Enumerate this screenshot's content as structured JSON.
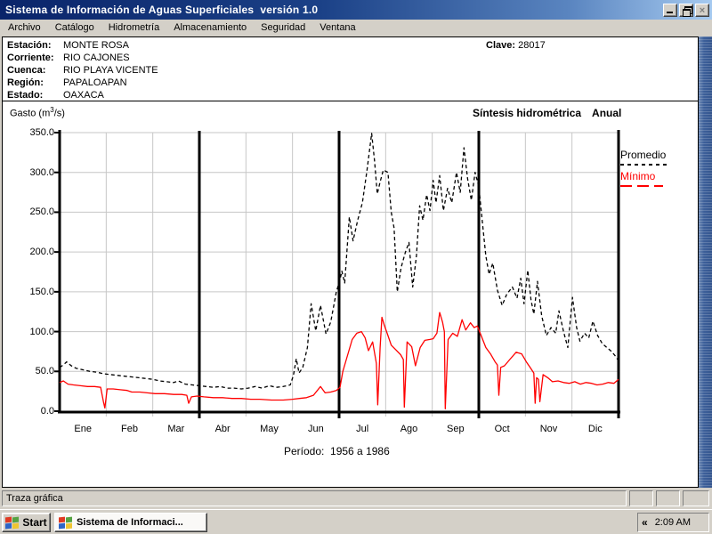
{
  "window": {
    "title": "Sistema de Información de Aguas Superficiales  versión 1.0"
  },
  "menu": {
    "items": [
      "Archivo",
      "Catálogo",
      "Hidrometría",
      "Almacenamiento",
      "Seguridad",
      "Ventana"
    ]
  },
  "station": {
    "rows": [
      {
        "label": "Estación:",
        "value": "MONTE ROSA"
      },
      {
        "label": "Corriente:",
        "value": "RIO CAJONES"
      },
      {
        "label": "Cuenca:",
        "value": "RIO PLAYA VICENTE"
      },
      {
        "label": "Región:",
        "value": "PAPALOAPAN"
      },
      {
        "label": "Estado:",
        "value": "OAXACA"
      }
    ],
    "clave_label": "Clave:",
    "clave_value": "28017"
  },
  "chart_data": {
    "type": "line",
    "title": "Síntesis hidrométrica",
    "title_suffix": "Anual",
    "ylabel_prefix": "Gasto (m",
    "ylabel_sup": "3",
    "ylabel_suffix": "/s)",
    "annotation": "Período:  1956 a 1986",
    "ylim": [
      0,
      350
    ],
    "yticks": [
      "350.0",
      "300.0",
      "250.0",
      "200.0",
      "150.0",
      "100.0",
      "50.0",
      "0.0"
    ],
    "ytick_values": [
      350,
      300,
      250,
      200,
      150,
      100,
      50,
      0
    ],
    "categories": [
      "Ene",
      "Feb",
      "Mar",
      "Abr",
      "May",
      "Jun",
      "Jul",
      "Ago",
      "Sep",
      "Oct",
      "Nov",
      "Dic"
    ],
    "grid": true,
    "grid_color": "#c6c6c6",
    "legend_position": "right",
    "legend": [
      {
        "label": "Promedio",
        "color": "#000000",
        "style": "dashed"
      },
      {
        "label": "Mínimo",
        "color": "#ff0000",
        "style": "solid"
      }
    ],
    "series": [
      {
        "name": "Promedio",
        "color": "#000000",
        "dashed": true,
        "points": [
          [
            0.0,
            55
          ],
          [
            0.08,
            58
          ],
          [
            0.15,
            62
          ],
          [
            0.25,
            57
          ],
          [
            0.35,
            54
          ],
          [
            0.5,
            52
          ],
          [
            0.65,
            50
          ],
          [
            0.8,
            49
          ],
          [
            0.95,
            47
          ],
          [
            1.1,
            46
          ],
          [
            1.25,
            45
          ],
          [
            1.4,
            44
          ],
          [
            1.55,
            43
          ],
          [
            1.7,
            42
          ],
          [
            1.85,
            41
          ],
          [
            2.0,
            40
          ],
          [
            2.15,
            38
          ],
          [
            2.3,
            37
          ],
          [
            2.45,
            36
          ],
          [
            2.55,
            38
          ],
          [
            2.7,
            34
          ],
          [
            2.85,
            33
          ],
          [
            3.0,
            32
          ],
          [
            3.15,
            31
          ],
          [
            3.3,
            30
          ],
          [
            3.45,
            31
          ],
          [
            3.6,
            29
          ],
          [
            3.75,
            29
          ],
          [
            3.9,
            28
          ],
          [
            4.05,
            29
          ],
          [
            4.2,
            31
          ],
          [
            4.35,
            29
          ],
          [
            4.5,
            32
          ],
          [
            4.65,
            30
          ],
          [
            4.8,
            31
          ],
          [
            4.95,
            33
          ],
          [
            5.02,
            45
          ],
          [
            5.08,
            66
          ],
          [
            5.14,
            48
          ],
          [
            5.22,
            55
          ],
          [
            5.32,
            80
          ],
          [
            5.4,
            135
          ],
          [
            5.5,
            101
          ],
          [
            5.6,
            133
          ],
          [
            5.72,
            97
          ],
          [
            5.82,
            112
          ],
          [
            5.94,
            150
          ],
          [
            6.02,
            165
          ],
          [
            6.06,
            176
          ],
          [
            6.12,
            161
          ],
          [
            6.22,
            244
          ],
          [
            6.3,
            214
          ],
          [
            6.4,
            240
          ],
          [
            6.5,
            262
          ],
          [
            6.6,
            303
          ],
          [
            6.7,
            349
          ],
          [
            6.76,
            315
          ],
          [
            6.82,
            273
          ],
          [
            6.88,
            288
          ],
          [
            6.95,
            303
          ],
          [
            7.05,
            300
          ],
          [
            7.12,
            250
          ],
          [
            7.18,
            230
          ],
          [
            7.25,
            150
          ],
          [
            7.33,
            180
          ],
          [
            7.42,
            199
          ],
          [
            7.5,
            212
          ],
          [
            7.58,
            156
          ],
          [
            7.66,
            195
          ],
          [
            7.73,
            258
          ],
          [
            7.8,
            240
          ],
          [
            7.88,
            272
          ],
          [
            7.95,
            252
          ],
          [
            8.02,
            290
          ],
          [
            8.08,
            262
          ],
          [
            8.16,
            296
          ],
          [
            8.24,
            252
          ],
          [
            8.33,
            280
          ],
          [
            8.42,
            262
          ],
          [
            8.52,
            300
          ],
          [
            8.6,
            275
          ],
          [
            8.68,
            331
          ],
          [
            8.76,
            292
          ],
          [
            8.84,
            265
          ],
          [
            8.92,
            300
          ],
          [
            9.0,
            282
          ],
          [
            9.08,
            235
          ],
          [
            9.15,
            195
          ],
          [
            9.22,
            172
          ],
          [
            9.3,
            186
          ],
          [
            9.4,
            152
          ],
          [
            9.5,
            133
          ],
          [
            9.6,
            147
          ],
          [
            9.72,
            156
          ],
          [
            9.82,
            142
          ],
          [
            9.9,
            167
          ],
          [
            9.97,
            135
          ],
          [
            10.05,
            177
          ],
          [
            10.12,
            140
          ],
          [
            10.18,
            122
          ],
          [
            10.26,
            163
          ],
          [
            10.35,
            120
          ],
          [
            10.45,
            95
          ],
          [
            10.55,
            105
          ],
          [
            10.65,
            98
          ],
          [
            10.72,
            126
          ],
          [
            10.82,
            100
          ],
          [
            10.91,
            80
          ],
          [
            11.01,
            143
          ],
          [
            11.1,
            105
          ],
          [
            11.17,
            88
          ],
          [
            11.27,
            98
          ],
          [
            11.36,
            92
          ],
          [
            11.45,
            113
          ],
          [
            11.55,
            95
          ],
          [
            11.65,
            85
          ],
          [
            11.75,
            80
          ],
          [
            11.85,
            75
          ],
          [
            11.95,
            68
          ],
          [
            12.0,
            63
          ]
        ]
      },
      {
        "name": "Mínimo",
        "color": "#ff0000",
        "dashed": false,
        "points": [
          [
            0.0,
            36
          ],
          [
            0.08,
            38
          ],
          [
            0.18,
            34
          ],
          [
            0.3,
            33
          ],
          [
            0.45,
            32
          ],
          [
            0.6,
            31
          ],
          [
            0.75,
            31
          ],
          [
            0.88,
            30
          ],
          [
            0.94,
            12
          ],
          [
            0.97,
            4
          ],
          [
            1.02,
            28
          ],
          [
            1.15,
            28
          ],
          [
            1.3,
            27
          ],
          [
            1.45,
            26
          ],
          [
            1.55,
            24
          ],
          [
            1.72,
            24
          ],
          [
            1.88,
            23
          ],
          [
            2.05,
            22
          ],
          [
            2.25,
            22
          ],
          [
            2.45,
            21
          ],
          [
            2.62,
            21
          ],
          [
            2.73,
            20
          ],
          [
            2.77,
            10
          ],
          [
            2.83,
            18
          ],
          [
            2.95,
            19
          ],
          [
            3.1,
            18
          ],
          [
            3.3,
            17
          ],
          [
            3.5,
            17
          ],
          [
            3.7,
            16
          ],
          [
            3.9,
            16
          ],
          [
            4.1,
            15
          ],
          [
            4.3,
            15
          ],
          [
            4.55,
            14
          ],
          [
            4.8,
            14
          ],
          [
            5.0,
            15
          ],
          [
            5.15,
            16
          ],
          [
            5.3,
            17
          ],
          [
            5.45,
            20
          ],
          [
            5.6,
            31
          ],
          [
            5.7,
            23
          ],
          [
            5.82,
            24
          ],
          [
            5.94,
            26
          ],
          [
            6.02,
            30
          ],
          [
            6.08,
            50
          ],
          [
            6.16,
            66
          ],
          [
            6.28,
            90
          ],
          [
            6.38,
            98
          ],
          [
            6.48,
            100
          ],
          [
            6.56,
            92
          ],
          [
            6.63,
            76
          ],
          [
            6.72,
            87
          ],
          [
            6.8,
            60
          ],
          [
            6.83,
            8
          ],
          [
            6.88,
            80
          ],
          [
            6.92,
            118
          ],
          [
            6.97,
            108
          ],
          [
            7.05,
            95
          ],
          [
            7.12,
            83
          ],
          [
            7.22,
            77
          ],
          [
            7.32,
            71
          ],
          [
            7.38,
            65
          ],
          [
            7.4,
            5
          ],
          [
            7.46,
            87
          ],
          [
            7.56,
            81
          ],
          [
            7.64,
            57
          ],
          [
            7.74,
            80
          ],
          [
            7.84,
            89
          ],
          [
            7.94,
            90
          ],
          [
            8.02,
            91
          ],
          [
            8.1,
            98
          ],
          [
            8.16,
            124
          ],
          [
            8.22,
            112
          ],
          [
            8.26,
            100
          ],
          [
            8.28,
            3
          ],
          [
            8.34,
            90
          ],
          [
            8.44,
            98
          ],
          [
            8.54,
            94
          ],
          [
            8.64,
            115
          ],
          [
            8.72,
            102
          ],
          [
            8.82,
            111
          ],
          [
            8.9,
            105
          ],
          [
            8.97,
            107
          ],
          [
            9.05,
            95
          ],
          [
            9.15,
            80
          ],
          [
            9.25,
            72
          ],
          [
            9.35,
            62
          ],
          [
            9.4,
            58
          ],
          [
            9.43,
            20
          ],
          [
            9.47,
            55
          ],
          [
            9.55,
            57
          ],
          [
            9.68,
            66
          ],
          [
            9.8,
            74
          ],
          [
            9.92,
            72
          ],
          [
            10.02,
            62
          ],
          [
            10.1,
            55
          ],
          [
            10.18,
            48
          ],
          [
            10.21,
            10
          ],
          [
            10.24,
            42
          ],
          [
            10.28,
            40
          ],
          [
            10.31,
            12
          ],
          [
            10.38,
            46
          ],
          [
            10.48,
            42
          ],
          [
            10.58,
            37
          ],
          [
            10.7,
            38
          ],
          [
            10.82,
            36
          ],
          [
            10.94,
            35
          ],
          [
            11.06,
            37
          ],
          [
            11.18,
            34
          ],
          [
            11.3,
            36
          ],
          [
            11.42,
            35
          ],
          [
            11.54,
            33
          ],
          [
            11.66,
            34
          ],
          [
            11.78,
            36
          ],
          [
            11.9,
            35
          ],
          [
            12.0,
            40
          ]
        ]
      }
    ]
  },
  "status_bar": {
    "text": "Traza gráfica"
  },
  "taskbar": {
    "start_label": "Start",
    "task_label": "Sistema de Informaci...",
    "tray_chevron": "«",
    "clock": "2:09 AM"
  }
}
